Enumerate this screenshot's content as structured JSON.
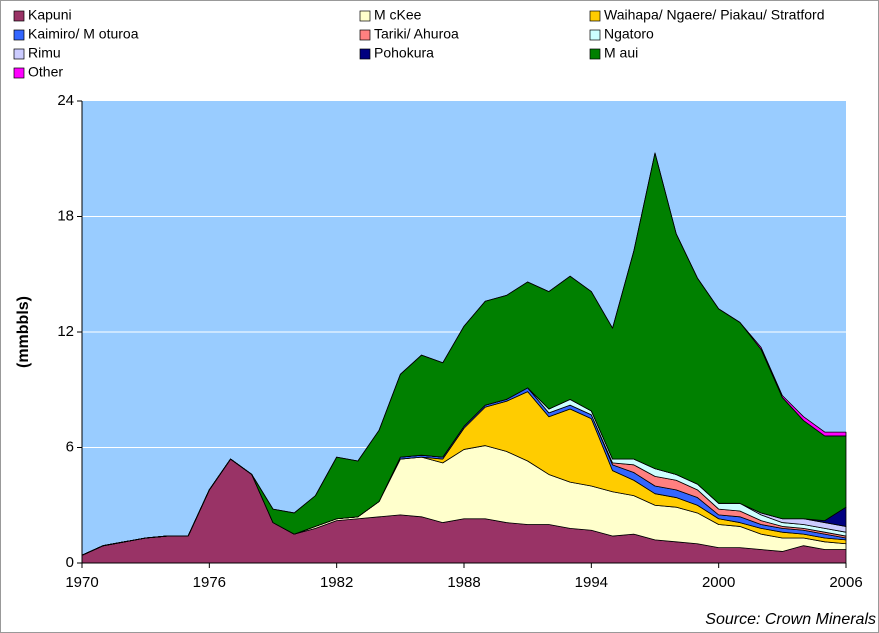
{
  "chart_data": {
    "type": "stacked_area",
    "ylabel": "(mmbbls)",
    "source": "Source:  Crown Minerals",
    "x": [
      1970,
      1971,
      1972,
      1973,
      1974,
      1975,
      1976,
      1977,
      1978,
      1979,
      1980,
      1981,
      1982,
      1983,
      1984,
      1985,
      1986,
      1987,
      1988,
      1989,
      1990,
      1991,
      1992,
      1993,
      1994,
      1995,
      1996,
      1997,
      1998,
      1999,
      2000,
      2001,
      2002,
      2003,
      2004,
      2005,
      2006
    ],
    "xlim": [
      1970,
      2006
    ],
    "xticks": [
      1970,
      1976,
      1982,
      1988,
      1994,
      2000,
      2006
    ],
    "ylim": [
      0,
      24
    ],
    "yticks": [
      0,
      6,
      12,
      18,
      24
    ],
    "grid": true,
    "series": [
      {
        "name": "Kapuni",
        "color": "#993366",
        "values": [
          0.4,
          0.9,
          1.1,
          1.3,
          1.4,
          1.4,
          3.8,
          5.4,
          4.6,
          2.1,
          1.5,
          1.8,
          2.2,
          2.3,
          2.4,
          2.5,
          2.4,
          2.1,
          2.3,
          2.3,
          2.1,
          2.0,
          2.0,
          1.8,
          1.7,
          1.4,
          1.5,
          1.2,
          1.1,
          1.0,
          0.8,
          0.8,
          0.7,
          0.6,
          0.9,
          0.7,
          0.7
        ]
      },
      {
        "name": "M cKee",
        "color": "#ffffcc",
        "values": [
          0,
          0,
          0,
          0,
          0,
          0,
          0,
          0,
          0,
          0,
          0,
          0.1,
          0.1,
          0.1,
          0.8,
          2.9,
          3.1,
          3.1,
          3.6,
          3.8,
          3.7,
          3.3,
          2.6,
          2.4,
          2.3,
          2.3,
          2.0,
          1.8,
          1.8,
          1.6,
          1.2,
          1.1,
          0.8,
          0.7,
          0.4,
          0.4,
          0.3
        ]
      },
      {
        "name": "Waihapa/ Ngaere/ Piakau/ Stratford",
        "color": "#ffcc00",
        "values": [
          0,
          0,
          0,
          0,
          0,
          0,
          0,
          0,
          0,
          0,
          0,
          0,
          0,
          0,
          0,
          0,
          0,
          0.2,
          1.1,
          2.0,
          2.6,
          3.6,
          3.0,
          3.8,
          3.5,
          1.1,
          0.8,
          0.6,
          0.5,
          0.4,
          0.3,
          0.2,
          0.3,
          0.3,
          0.2,
          0.2,
          0.2
        ]
      },
      {
        "name": "Kaimiro/ M oturoa",
        "color": "#3366ff",
        "values": [
          0,
          0,
          0,
          0,
          0,
          0,
          0,
          0,
          0,
          0,
          0,
          0,
          0,
          0,
          0,
          0.1,
          0.1,
          0.1,
          0.1,
          0.1,
          0.1,
          0.2,
          0.2,
          0.2,
          0.2,
          0.3,
          0.4,
          0.4,
          0.4,
          0.4,
          0.2,
          0.3,
          0.2,
          0.2,
          0.2,
          0.2,
          0.1
        ]
      },
      {
        "name": "Tariki/ Ahuroa",
        "color": "#ff8080",
        "values": [
          0,
          0,
          0,
          0,
          0,
          0,
          0,
          0,
          0,
          0,
          0,
          0,
          0,
          0,
          0,
          0,
          0,
          0,
          0,
          0,
          0,
          0,
          0,
          0,
          0,
          0.1,
          0.4,
          0.5,
          0.5,
          0.4,
          0.3,
          0.3,
          0.2,
          0.1,
          0.1,
          0.1,
          0.1
        ]
      },
      {
        "name": "Ngatoro",
        "color": "#ccffff",
        "values": [
          0,
          0,
          0,
          0,
          0,
          0,
          0,
          0,
          0,
          0,
          0,
          0,
          0,
          0,
          0,
          0,
          0,
          0,
          0,
          0,
          0,
          0,
          0.2,
          0.3,
          0.2,
          0.2,
          0.3,
          0.4,
          0.3,
          0.3,
          0.3,
          0.4,
          0.3,
          0.2,
          0.2,
          0.2,
          0.2
        ]
      },
      {
        "name": "Rimu",
        "color": "#ccccff",
        "values": [
          0,
          0,
          0,
          0,
          0,
          0,
          0,
          0,
          0,
          0,
          0,
          0,
          0,
          0,
          0,
          0,
          0,
          0,
          0,
          0,
          0,
          0,
          0,
          0,
          0,
          0,
          0,
          0,
          0,
          0,
          0,
          0,
          0.1,
          0.2,
          0.3,
          0.3,
          0.3
        ]
      },
      {
        "name": "Pohokura",
        "color": "#000080",
        "values": [
          0,
          0,
          0,
          0,
          0,
          0,
          0,
          0,
          0,
          0,
          0,
          0,
          0,
          0,
          0,
          0,
          0,
          0,
          0,
          0,
          0,
          0,
          0,
          0,
          0,
          0,
          0,
          0,
          0,
          0,
          0,
          0,
          0,
          0,
          0,
          0.1,
          1.0
        ]
      },
      {
        "name": "M aui",
        "color": "#008000",
        "values": [
          0,
          0,
          0,
          0,
          0,
          0,
          0,
          0,
          0,
          0.7,
          1.1,
          1.6,
          3.2,
          2.9,
          3.7,
          4.3,
          5.2,
          4.9,
          5.2,
          5.4,
          5.4,
          5.5,
          6.1,
          6.4,
          6.2,
          6.8,
          10.8,
          16.4,
          12.5,
          10.7,
          10.1,
          9.4,
          8.5,
          6.3,
          5.1,
          4.4,
          3.7
        ]
      },
      {
        "name": "Other",
        "color": "#ff00ff",
        "values": [
          0,
          0,
          0,
          0,
          0,
          0,
          0,
          0,
          0,
          0,
          0,
          0,
          0,
          0,
          0,
          0,
          0,
          0,
          0,
          0,
          0,
          0,
          0,
          0,
          0,
          0,
          0,
          0,
          0,
          0,
          0,
          0,
          0.1,
          0.1,
          0.2,
          0.2,
          0.2
        ]
      }
    ]
  }
}
